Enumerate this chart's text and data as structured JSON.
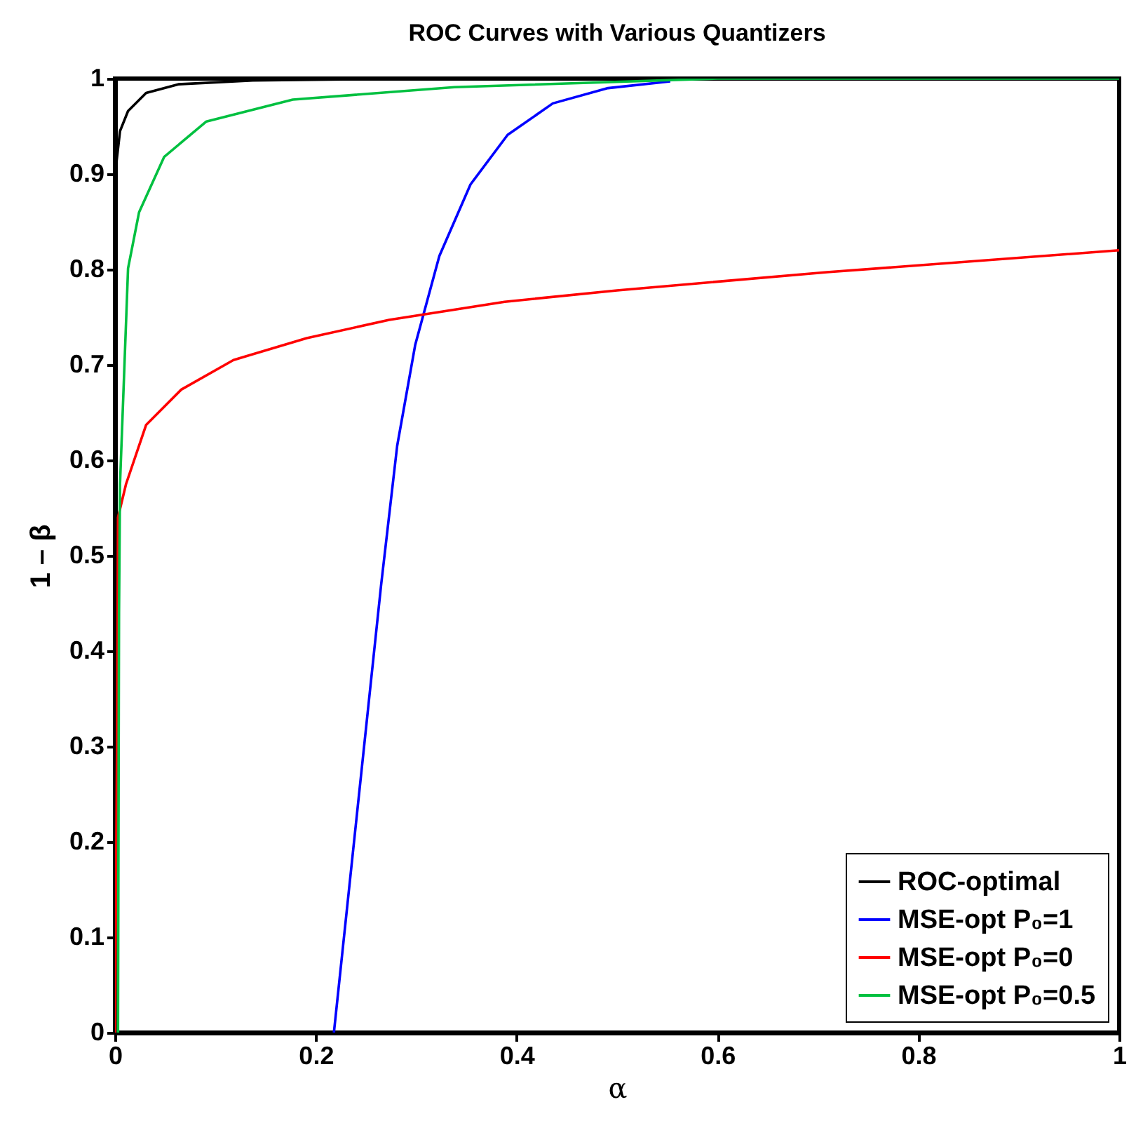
{
  "chart_data": {
    "type": "line",
    "title": "ROC Curves with Various Quantizers",
    "xlabel": "α",
    "ylabel": "1 – β",
    "xlim": [
      0,
      1
    ],
    "ylim": [
      0,
      1
    ],
    "xticks": [
      0,
      0.2,
      0.4,
      0.6,
      0.8,
      1
    ],
    "yticks": [
      0,
      0.1,
      0.2,
      0.3,
      0.4,
      0.5,
      0.6,
      0.7,
      0.8,
      0.9,
      1
    ],
    "legend": "bottom right",
    "series": [
      {
        "name": "ROC-optimal",
        "color": "#000000",
        "x": [
          0,
          0,
          0.001,
          0.005,
          0.013,
          0.031,
          0.063,
          0.137,
          0.3,
          1
        ],
        "values": [
          0,
          0.8,
          0.908,
          0.945,
          0.966,
          0.985,
          0.994,
          0.998,
          1,
          1
        ]
      },
      {
        "name": "MSE-opt P₀=1",
        "color": "#0000ff",
        "x": [
          0.218,
          0.265,
          0.281,
          0.299,
          0.323,
          0.354,
          0.391,
          0.436,
          0.491,
          0.553
        ],
        "values": [
          0,
          0.469,
          0.615,
          0.721,
          0.814,
          0.889,
          0.941,
          0.974,
          0.99,
          0.997
        ]
      },
      {
        "name": "MSE-opt P₀=0",
        "color": "#ff0000",
        "x": [
          0,
          0.002,
          0.003,
          0.011,
          0.031,
          0.066,
          0.118,
          0.191,
          0.273,
          0.388,
          0.5,
          0.709,
          1
        ],
        "values": [
          0,
          0.3,
          0.54,
          0.575,
          0.637,
          0.674,
          0.705,
          0.728,
          0.747,
          0.766,
          0.778,
          0.797,
          0.82
        ]
      },
      {
        "name": "MSE-opt P₀=0.5",
        "color": "#00c040",
        "x": [
          0.003,
          0.004,
          0.005,
          0.013,
          0.024,
          0.049,
          0.091,
          0.177,
          0.338,
          0.6,
          1
        ],
        "values": [
          0,
          0.44,
          0.575,
          0.801,
          0.86,
          0.918,
          0.955,
          0.978,
          0.991,
          1,
          1
        ]
      }
    ]
  }
}
